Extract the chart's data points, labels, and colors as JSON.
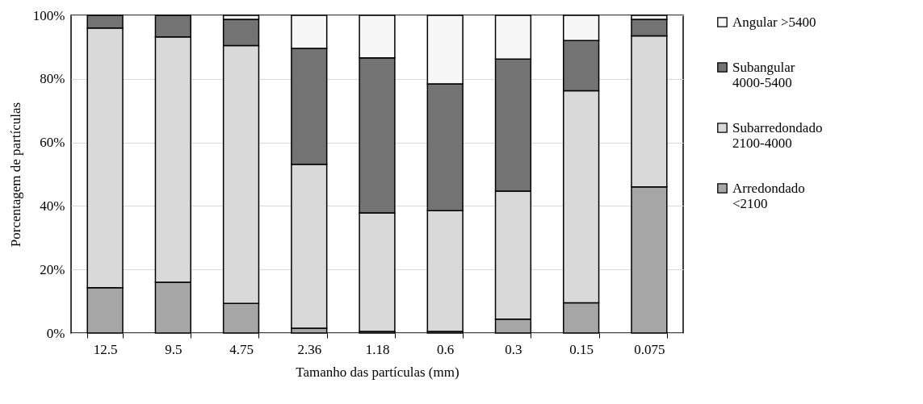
{
  "chart_data": {
    "type": "bar",
    "stacked": true,
    "xlabel": "Tamanho das partículas (mm)",
    "ylabel": "Porcentagem de partículas",
    "categories": [
      "12.5",
      "9.5",
      "4.75",
      "2.36",
      "1.18",
      "0.6",
      "0.3",
      "0.15",
      "0.075"
    ],
    "series": [
      {
        "name": "Arredondado <2100",
        "color": "#a6a6a6",
        "values": [
          14.3,
          16.0,
          9.3,
          1.5,
          0.5,
          0.5,
          4.4,
          9.5,
          46.0
        ]
      },
      {
        "name": "Subarredondado 2100-4000",
        "color": "#d9d9d9",
        "values": [
          81.7,
          77.2,
          81.2,
          51.6,
          37.3,
          38.0,
          40.3,
          66.8,
          47.5
        ]
      },
      {
        "name": "Subangular 4000-5400",
        "color": "#737373",
        "values": [
          4.0,
          6.8,
          8.2,
          36.5,
          48.8,
          39.9,
          41.5,
          15.8,
          5.2
        ]
      },
      {
        "name": "Angular >5400",
        "color": "#f7f7f7",
        "values": [
          null,
          null,
          1.3,
          10.4,
          13.4,
          21.6,
          13.8,
          7.9,
          1.3
        ]
      }
    ],
    "ylim": [
      0,
      100
    ],
    "yticks": [
      {
        "value": 0,
        "label": "0%"
      },
      {
        "value": 20,
        "label": "20%"
      },
      {
        "value": 40,
        "label": "40%"
      },
      {
        "value": 60,
        "label": "60%"
      },
      {
        "value": 80,
        "label": "80%"
      },
      {
        "value": 100,
        "label": "100%"
      }
    ],
    "grid": "y",
    "legend": "right"
  }
}
